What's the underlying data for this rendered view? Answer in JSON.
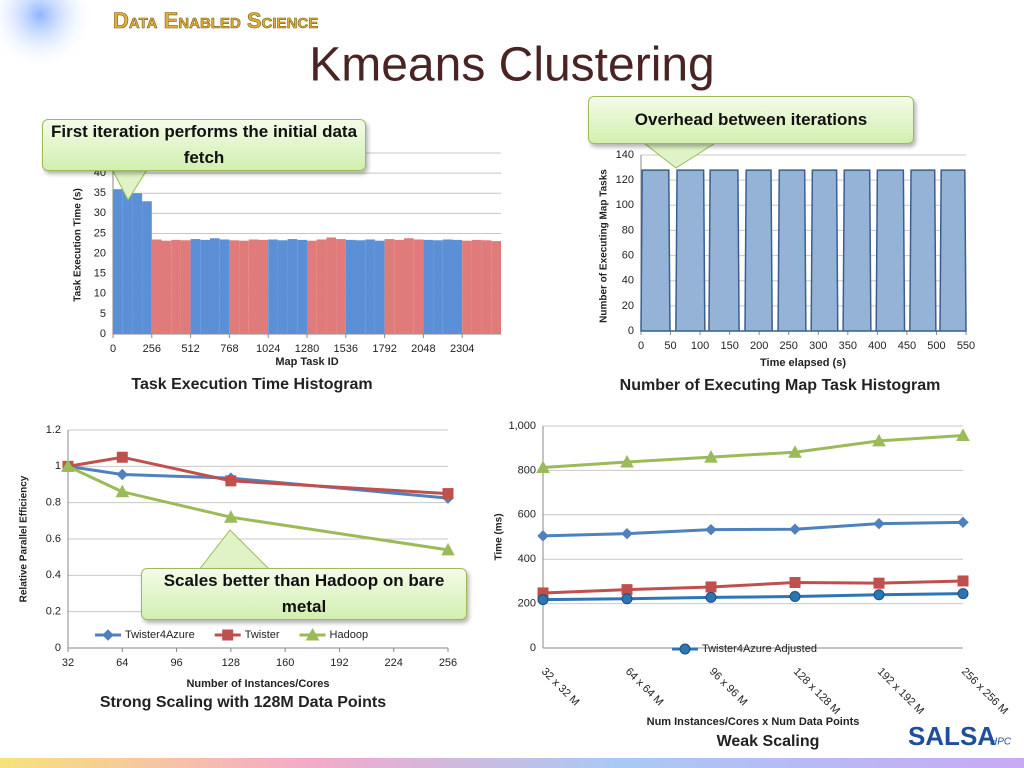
{
  "header": {
    "subtitle": "Data Enabled Science",
    "title": "Kmeans Clustering"
  },
  "callouts": [
    "First iteration performs the initial data fetch",
    "Overhead between iterations",
    "Scales better than Hadoop on bare metal"
  ],
  "logo": {
    "name": "SALSA",
    "suffix": "HPC"
  },
  "chart_data": [
    {
      "type": "histogram",
      "caption": "Task Execution Time Histogram",
      "y_label": "Task Execution Time (s)",
      "x_label": "Map Task ID",
      "bins": [
        0,
        64,
        128,
        192,
        256,
        320,
        384,
        448,
        512,
        576,
        640,
        704,
        768,
        832,
        896,
        960,
        1024,
        1088,
        1152,
        1216,
        1280,
        1344,
        1408,
        1472,
        1536,
        1600,
        1664,
        1728,
        1792,
        1856,
        1920,
        1984,
        2048,
        2112,
        2176,
        2240,
        2304,
        2368,
        2432,
        2496,
        2560
      ],
      "values": [
        36,
        38,
        35,
        33,
        23.5,
        23.2,
        23.4,
        23.3,
        23.6,
        23.4,
        23.8,
        23.5,
        23.3,
        23.2,
        23.5,
        23.4,
        23.5,
        23.3,
        23.6,
        23.4,
        23.2,
        23.5,
        24,
        23.6,
        23.4,
        23.3,
        23.5,
        23.2,
        23.6,
        23.4,
        23.8,
        23.5,
        23.4,
        23.3,
        23.5,
        23.4,
        23.2,
        23.4,
        23.3,
        23.1
      ],
      "colors": [
        "#5b8fd6",
        "#5b8fd6",
        "#5b8fd6",
        "#5b8fd6",
        "#e07b7b",
        "#e07b7b",
        "#e07b7b",
        "#e07b7b",
        "#5b8fd6",
        "#5b8fd6",
        "#5b8fd6",
        "#5b8fd6",
        "#e07b7b",
        "#e07b7b",
        "#e07b7b",
        "#e07b7b",
        "#5b8fd6",
        "#5b8fd6",
        "#5b8fd6",
        "#5b8fd6",
        "#e07b7b",
        "#e07b7b",
        "#e07b7b",
        "#e07b7b",
        "#5b8fd6",
        "#5b8fd6",
        "#5b8fd6",
        "#5b8fd6",
        "#e07b7b",
        "#e07b7b",
        "#e07b7b",
        "#e07b7b",
        "#5b8fd6",
        "#5b8fd6",
        "#5b8fd6",
        "#5b8fd6",
        "#e07b7b",
        "#e07b7b",
        "#e07b7b",
        "#e07b7b"
      ],
      "xlim": [
        0,
        2560
      ],
      "xticks": [
        0,
        256,
        512,
        768,
        1024,
        1280,
        1536,
        1792,
        2048,
        2304
      ],
      "ylim": [
        0,
        45
      ],
      "yticks": [
        0,
        5,
        10,
        15,
        20,
        25,
        30,
        35,
        40,
        45
      ],
      "grid": true
    },
    {
      "type": "area",
      "caption": "Number of Executing Map Task Histogram",
      "y_label": "Number of Executing Map Tasks",
      "x_label": "Time elapsed (s)",
      "x": [
        0,
        2,
        47,
        49,
        59,
        61,
        106,
        108,
        115,
        117,
        164,
        166,
        176,
        178,
        220,
        222,
        232,
        234,
        277,
        279,
        288,
        290,
        331,
        333,
        342,
        344,
        387,
        389,
        398,
        400,
        444,
        446,
        455,
        457,
        497,
        499,
        506,
        508,
        548,
        550
      ],
      "values": [
        0,
        128,
        128,
        0,
        0,
        128,
        128,
        0,
        0,
        128,
        128,
        0,
        0,
        128,
        128,
        0,
        0,
        128,
        128,
        0,
        0,
        128,
        128,
        0,
        0,
        128,
        128,
        0,
        0,
        128,
        128,
        0,
        0,
        128,
        128,
        0,
        0,
        128,
        128,
        0
      ],
      "color": "#95b3d7",
      "line_color": "#3a5f8f",
      "xlim": [
        0,
        550
      ],
      "xticks": [
        0,
        50,
        100,
        150,
        200,
        250,
        300,
        350,
        400,
        450,
        500,
        550
      ],
      "ylim": [
        0,
        140
      ],
      "yticks": [
        0,
        20,
        40,
        60,
        80,
        100,
        120,
        140
      ],
      "grid": true
    },
    {
      "type": "line",
      "caption": "Strong Scaling with 128M Data Points",
      "y_label": "Relative Parallel Efficiency",
      "x_label": "Number of Instances/Cores",
      "x": [
        32,
        64,
        128,
        256
      ],
      "series": [
        {
          "name": "Twister4Azure",
          "color": "#4f81bd",
          "marker": "diamond",
          "values": [
            1,
            0.955,
            0.935,
            0.825
          ]
        },
        {
          "name": "Twister",
          "color": "#c0504d",
          "marker": "square",
          "values": [
            1,
            1.05,
            0.92,
            0.85
          ]
        },
        {
          "name": "Hadoop",
          "color": "#9bbb59",
          "marker": "triangle",
          "values": [
            1,
            0.86,
            0.72,
            0.54
          ]
        }
      ],
      "xlim": [
        32,
        256
      ],
      "xticks": [
        32,
        64,
        96,
        128,
        160,
        192,
        224,
        256
      ],
      "ylim": [
        0,
        1.2
      ],
      "yticks": [
        0,
        0.2,
        0.4,
        0.6,
        0.8,
        1,
        1.2
      ],
      "grid": true
    },
    {
      "type": "line",
      "caption": "Weak Scaling",
      "y_label": "Time (ms)",
      "x_label": "Num Instances/Cores x Num Data Points",
      "categories": [
        "32 x 32 M",
        "64 x 64 M",
        "96 x 96 M",
        "128 x 128 M",
        "192 x 192 M",
        "256 x 256 M"
      ],
      "series": [
        {
          "color": "#9bbb59",
          "marker": "triangle",
          "values": [
            813,
            838,
            860,
            882,
            933,
            957
          ]
        },
        {
          "color": "#4f81bd",
          "marker": "diamond",
          "values": [
            505,
            515,
            533,
            535,
            560,
            566
          ]
        },
        {
          "color": "#c0504d",
          "marker": "square",
          "values": [
            248,
            263,
            275,
            295,
            292,
            302
          ]
        },
        {
          "name": "Twister4Azure Adjusted",
          "color": "#2e75b6",
          "marker": "circle",
          "values": [
            218,
            222,
            228,
            232,
            240,
            245
          ]
        }
      ],
      "ylim": [
        0,
        1000
      ],
      "yticks": [
        0,
        200,
        400,
        600,
        800,
        {
          "value": 1000,
          "label": "1,000"
        }
      ],
      "grid": true
    }
  ]
}
